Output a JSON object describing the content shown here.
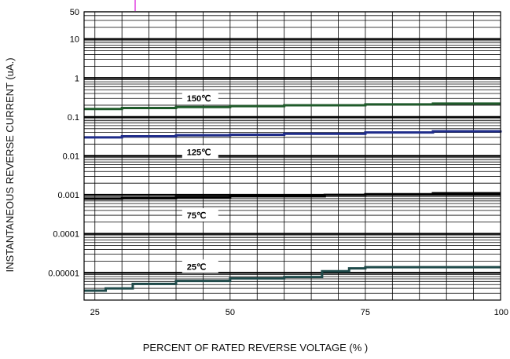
{
  "chart_data": {
    "type": "line",
    "title": "",
    "xlabel": "PERCENT OF RATED REVERSE VOLTAGE (% )",
    "ylabel": "INSTANTANEOUS REVERSE CURRENT (uA.)",
    "xlim": [
      23,
      100
    ],
    "ylim": [
      2e-06,
      50
    ],
    "yscale": "log",
    "grid": true,
    "x_ticks": [
      25,
      50,
      75,
      100
    ],
    "x_tick_labels": [
      "25",
      "50",
      "75",
      "100"
    ],
    "y_ticks": [
      50,
      10,
      1,
      0.1,
      0.01,
      0.001,
      0.0001,
      1e-05
    ],
    "y_tick_labels": [
      "50",
      "10",
      "1",
      "0.1",
      "0.01",
      "0.001",
      "0.0001",
      "0.00001"
    ],
    "series": [
      {
        "name": "150℃",
        "color": "#1f5a2a",
        "x": [
          23,
          30,
          40,
          50,
          60,
          75,
          87.5,
          100
        ],
        "y": [
          0.16,
          0.17,
          0.18,
          0.19,
          0.2,
          0.21,
          0.22,
          0.22
        ]
      },
      {
        "name": "125℃",
        "color": "#1f2c8a",
        "x": [
          23,
          30,
          40,
          50,
          60,
          75,
          87.5,
          100
        ],
        "y": [
          0.03,
          0.032,
          0.034,
          0.035,
          0.037,
          0.04,
          0.043,
          0.045
        ]
      },
      {
        "name": "75℃",
        "color": "#000000",
        "x": [
          23,
          30,
          40,
          50,
          67.5,
          75,
          87.5,
          100
        ],
        "y": [
          0.0008,
          0.00082,
          0.00088,
          0.00092,
          0.001,
          0.00104,
          0.0011,
          0.0011
        ]
      },
      {
        "name": "25℃",
        "color": "#1f4a4a",
        "x": [
          23,
          27,
          32,
          40,
          50,
          60,
          67,
          72,
          75,
          87.5,
          100
        ],
        "y": [
          3.5e-06,
          4e-06,
          5.2e-06,
          6.2e-06,
          7.2e-06,
          7.8e-06,
          1.1e-05,
          1.3e-05,
          1.4e-05,
          1.4e-05,
          1.4e-05
        ]
      }
    ]
  }
}
